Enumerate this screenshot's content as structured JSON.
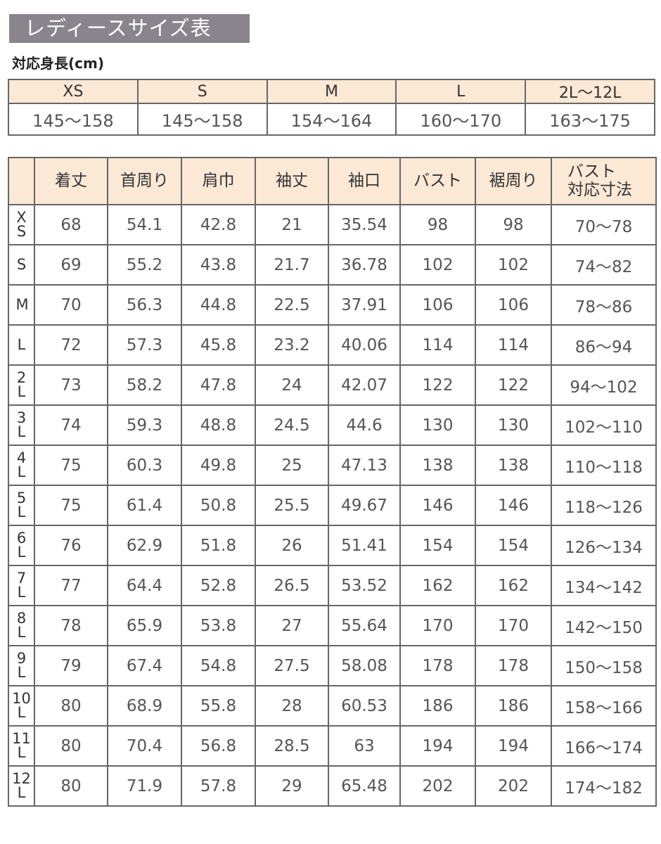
{
  "title": "レディースサイズ表",
  "height_table": {
    "caption": "対応身長(cm)",
    "sizes": [
      "XS",
      "S",
      "M",
      "L",
      "2L〜12L"
    ],
    "ranges": [
      "145〜158",
      "145〜158",
      "154〜164",
      "160〜170",
      "163〜175"
    ]
  },
  "colors": {
    "title_bg": "#8a858c",
    "header_bg": "#fbe8d5",
    "border": "#666666"
  },
  "size_table": {
    "headers": [
      "",
      "着丈",
      "首周り",
      "肩巾",
      "袖丈",
      "袖口",
      "バスト",
      "裾周り",
      "バスト\n対応寸法"
    ],
    "rows": [
      [
        "XS",
        "68",
        "54.1",
        "42.8",
        "21",
        "35.54",
        "98",
        "98",
        "70〜78"
      ],
      [
        "S",
        "69",
        "55.2",
        "43.8",
        "21.7",
        "36.78",
        "102",
        "102",
        "74〜82"
      ],
      [
        "M",
        "70",
        "56.3",
        "44.8",
        "22.5",
        "37.91",
        "106",
        "106",
        "78〜86"
      ],
      [
        "L",
        "72",
        "57.3",
        "45.8",
        "23.2",
        "40.06",
        "114",
        "114",
        "86〜94"
      ],
      [
        "2L",
        "73",
        "58.2",
        "47.8",
        "24",
        "42.07",
        "122",
        "122",
        "94〜102"
      ],
      [
        "3L",
        "74",
        "59.3",
        "48.8",
        "24.5",
        "44.6",
        "130",
        "130",
        "102〜110"
      ],
      [
        "4L",
        "75",
        "60.3",
        "49.8",
        "25",
        "47.13",
        "138",
        "138",
        "110〜118"
      ],
      [
        "5L",
        "75",
        "61.4",
        "50.8",
        "25.5",
        "49.67",
        "146",
        "146",
        "118〜126"
      ],
      [
        "6L",
        "76",
        "62.9",
        "51.8",
        "26",
        "51.41",
        "154",
        "154",
        "126〜134"
      ],
      [
        "7L",
        "77",
        "64.4",
        "52.8",
        "26.5",
        "53.52",
        "162",
        "162",
        "134〜142"
      ],
      [
        "8L",
        "78",
        "65.9",
        "53.8",
        "27",
        "55.64",
        "170",
        "170",
        "142〜150"
      ],
      [
        "9L",
        "79",
        "67.4",
        "54.8",
        "27.5",
        "58.08",
        "178",
        "178",
        "150〜158"
      ],
      [
        "10L",
        "80",
        "68.9",
        "55.8",
        "28",
        "60.53",
        "186",
        "186",
        "158〜166"
      ],
      [
        "11L",
        "80",
        "70.4",
        "56.8",
        "28.5",
        "63",
        "194",
        "194",
        "166〜174"
      ],
      [
        "12L",
        "80",
        "71.9",
        "57.8",
        "29",
        "65.48",
        "202",
        "202",
        "174〜182"
      ]
    ]
  }
}
